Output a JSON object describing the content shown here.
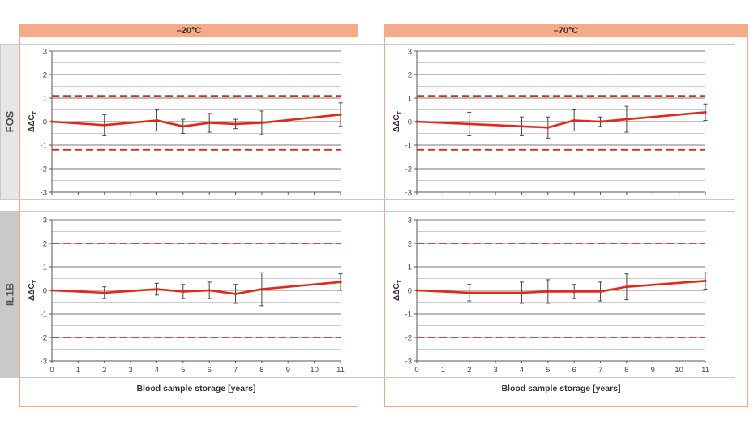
{
  "columns": [
    {
      "label": "–20°C"
    },
    {
      "label": "–70°C"
    }
  ],
  "rows": [
    {
      "label": "FOS"
    },
    {
      "label": "IL1B"
    }
  ],
  "colors": {
    "line": "#dd2a1b",
    "threshold": "#dd2a1b",
    "error_bar": "#444444",
    "grid": "#8c8c8c",
    "header_bg": "#f5aa88",
    "row_tab_light": "#e6e6e6",
    "row_tab_dark": "#c8cac8"
  },
  "chart_data": [
    {
      "type": "line",
      "row": "FOS",
      "column": "–20°C",
      "ylabel": "ΔΔC",
      "ylabel_sub": "T",
      "xlabel": "",
      "ylim": [
        -3,
        3
      ],
      "yticks": [
        "3",
        "2",
        "1",
        "0",
        "-1",
        "-2",
        "-3"
      ],
      "xlim": [
        0,
        11
      ],
      "xticks": [],
      "grid": true,
      "thresholds": [
        1.1,
        -1.2
      ],
      "series": [
        {
          "x": [
            0,
            2,
            4,
            5,
            6,
            7,
            8,
            11
          ],
          "y": [
            0,
            -0.15,
            0.05,
            -0.2,
            -0.05,
            -0.1,
            -0.05,
            0.3
          ],
          "err": [
            0,
            0.45,
            0.45,
            0.3,
            0.4,
            0.2,
            0.5,
            0.5
          ]
        }
      ]
    },
    {
      "type": "line",
      "row": "FOS",
      "column": "–70°C",
      "ylabel": "ΔΔC",
      "ylabel_sub": "T",
      "xlabel": "",
      "ylim": [
        -3,
        3
      ],
      "yticks": [
        "3",
        "2",
        "1",
        "0",
        "-1",
        "-2",
        "-3"
      ],
      "xlim": [
        0,
        11
      ],
      "xticks": [],
      "grid": true,
      "thresholds": [
        1.1,
        -1.2
      ],
      "series": [
        {
          "x": [
            0,
            2,
            4,
            5,
            6,
            7,
            8,
            11
          ],
          "y": [
            0,
            -0.1,
            -0.2,
            -0.25,
            0.05,
            0,
            0.1,
            0.4
          ],
          "err": [
            0,
            0.5,
            0.4,
            0.45,
            0.45,
            0.2,
            0.55,
            0.35
          ]
        }
      ]
    },
    {
      "type": "line",
      "row": "IL1B",
      "column": "–20°C",
      "ylabel": "ΔΔC",
      "ylabel_sub": "T",
      "xlabel": "Blood sample storage [years]",
      "ylim": [
        -3,
        3
      ],
      "yticks": [
        "3",
        "2",
        "1",
        "0",
        "-1",
        "-2",
        "-3"
      ],
      "xlim": [
        0,
        11
      ],
      "xticks": [
        "0",
        "1",
        "2",
        "3",
        "4",
        "5",
        "6",
        "7",
        "8",
        "9",
        "10",
        "11"
      ],
      "grid": true,
      "thresholds": [
        2,
        -2
      ],
      "series": [
        {
          "x": [
            0,
            2,
            4,
            5,
            6,
            7,
            8,
            11
          ],
          "y": [
            0,
            -0.1,
            0.05,
            -0.05,
            0,
            -0.15,
            0.05,
            0.35
          ],
          "err": [
            0,
            0.25,
            0.25,
            0.3,
            0.35,
            0.4,
            0.7,
            0.35
          ]
        }
      ]
    },
    {
      "type": "line",
      "row": "IL1B",
      "column": "–70°C",
      "ylabel": "ΔΔC",
      "ylabel_sub": "T",
      "xlabel": "Blood sample storage [years]",
      "ylim": [
        -3,
        3
      ],
      "yticks": [
        "3",
        "2",
        "1",
        "0",
        "-1",
        "-2",
        "-3"
      ],
      "xlim": [
        0,
        11
      ],
      "xticks": [
        "0",
        "1",
        "2",
        "3",
        "4",
        "5",
        "6",
        "7",
        "8",
        "9",
        "10",
        "11"
      ],
      "grid": true,
      "thresholds": [
        2,
        -2
      ],
      "series": [
        {
          "x": [
            0,
            2,
            4,
            5,
            6,
            7,
            8,
            11
          ],
          "y": [
            0,
            -0.1,
            -0.1,
            -0.05,
            -0.05,
            -0.05,
            0.15,
            0.4
          ],
          "err": [
            0,
            0.35,
            0.45,
            0.5,
            0.3,
            0.4,
            0.55,
            0.35
          ]
        }
      ]
    }
  ]
}
